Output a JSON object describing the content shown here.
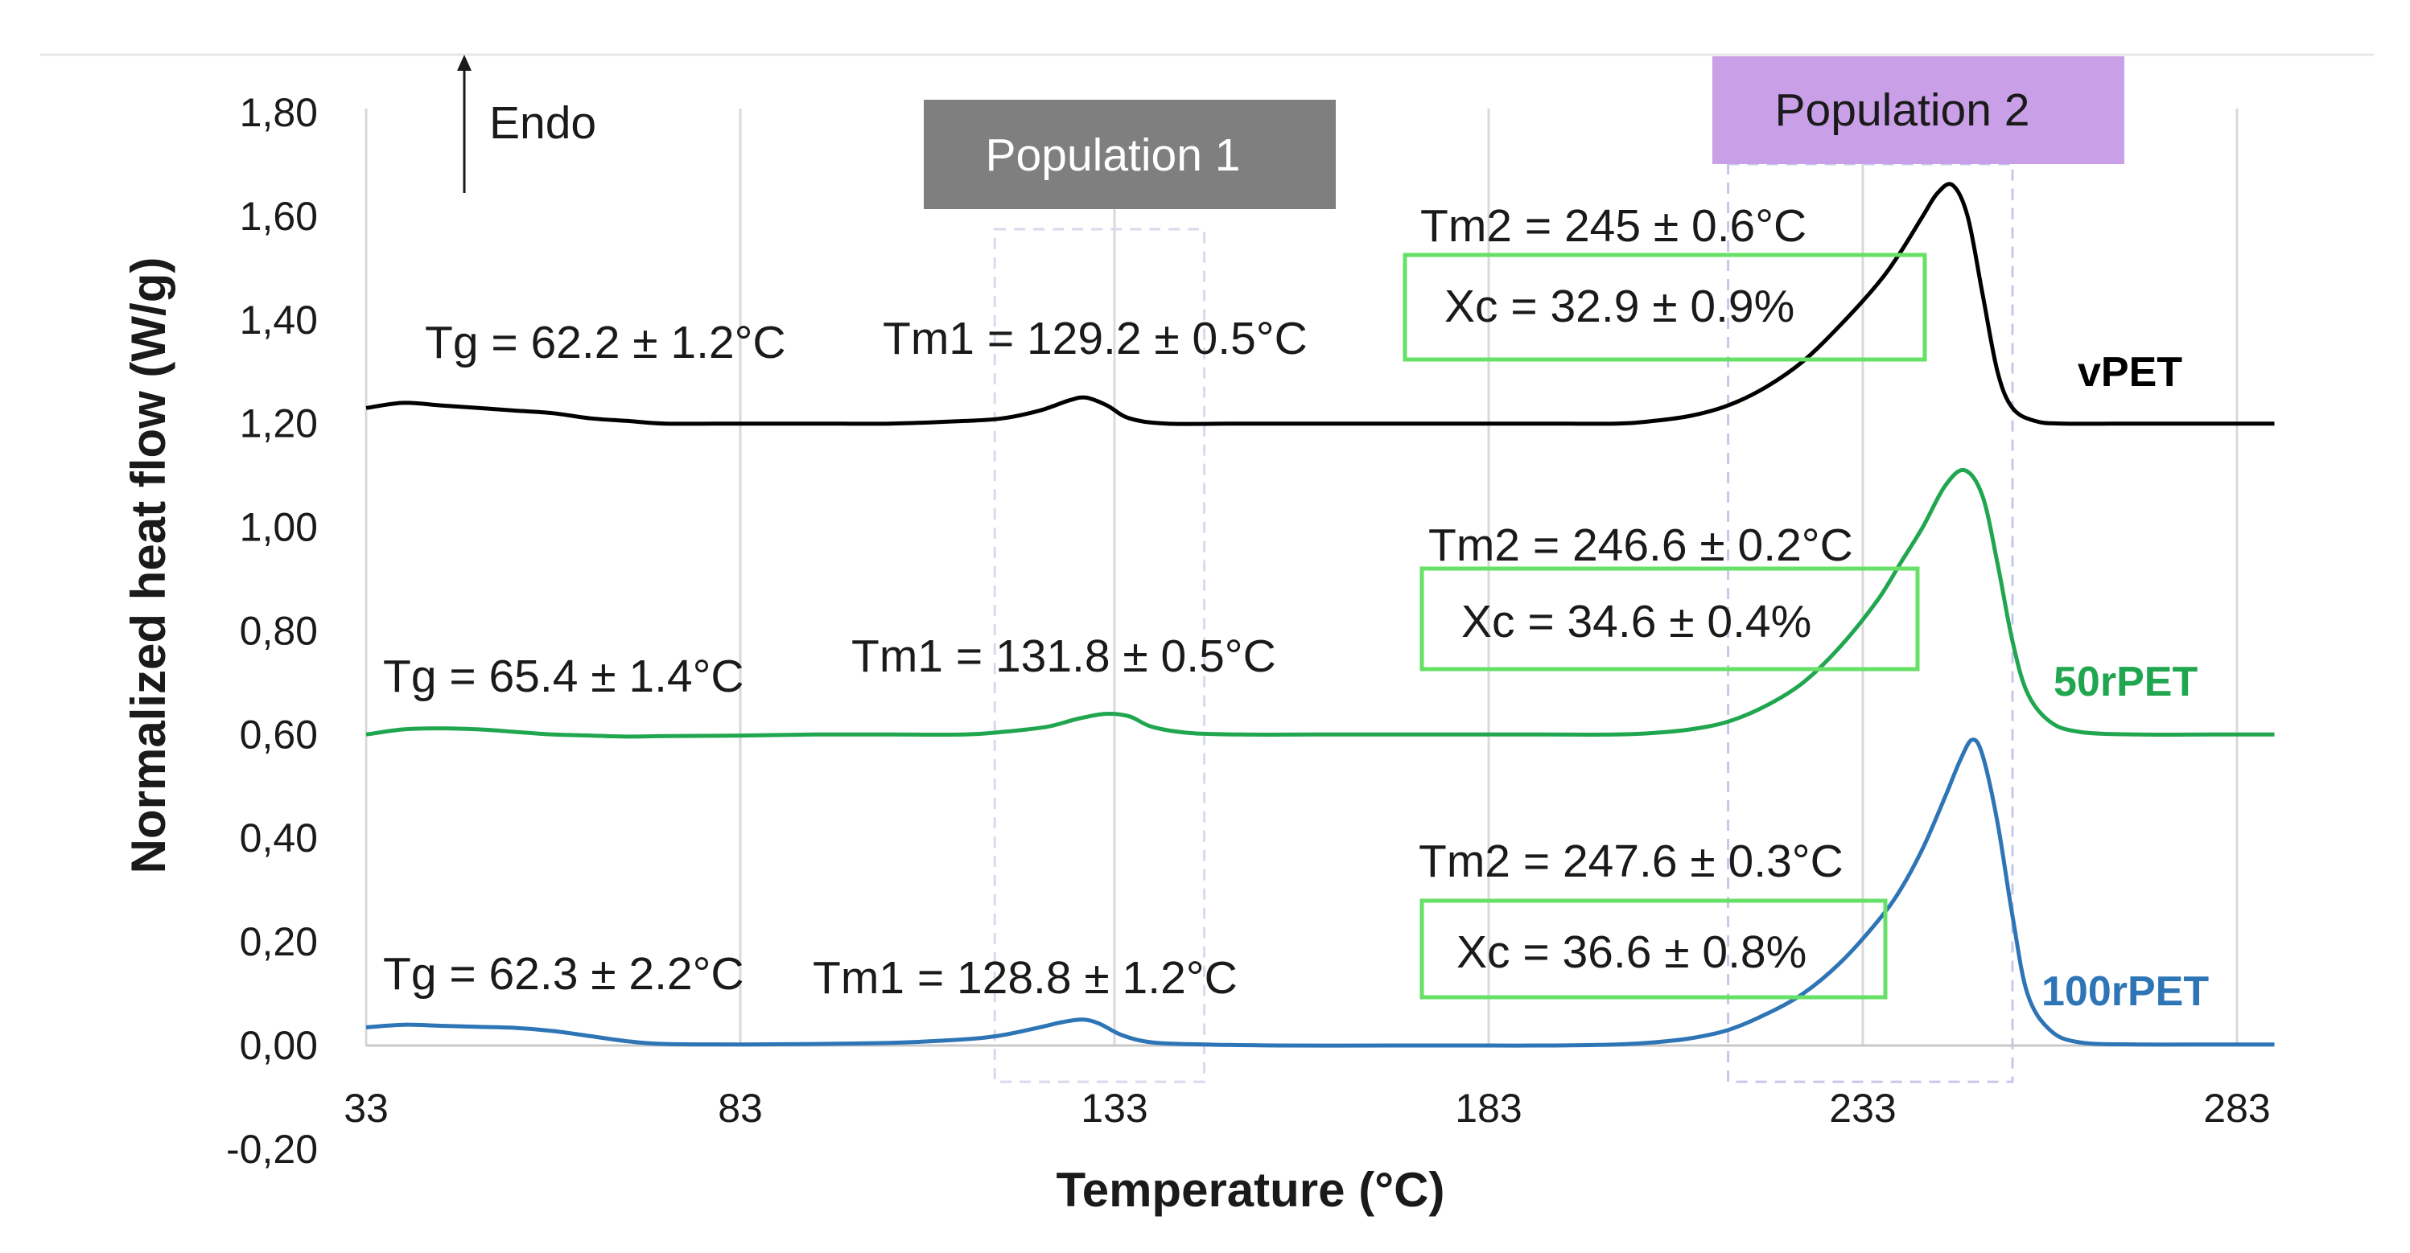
{
  "chart_data": {
    "type": "line",
    "xlabel": "Temperature (°C)",
    "ylabel": "Normalized heat flow (W/g)",
    "xlim": [
      33,
      288
    ],
    "ylim": [
      -0.2,
      1.8
    ],
    "x_ticks": [
      33,
      83,
      133,
      183,
      233,
      283
    ],
    "x_tick_labels": [
      "33",
      "83",
      "133",
      "183",
      "233",
      "283"
    ],
    "y_ticks": [
      -0.2,
      0,
      0.2,
      0.4,
      0.6,
      0.8,
      1.0,
      1.2,
      1.4,
      1.6,
      1.8
    ],
    "y_tick_labels": [
      "-0,20",
      "0,00",
      "0,20",
      "0,40",
      "0,60",
      "0,80",
      "1,00",
      "1,20",
      "1,40",
      "1,60",
      "1,80"
    ],
    "grid": "vertical",
    "endo_label": "Endo",
    "population_1": {
      "label": "Population 1",
      "range": [
        117,
        145
      ],
      "color": "#7f7f7f"
    },
    "population_2": {
      "label": "Population 2",
      "range": [
        215,
        253
      ],
      "color": "#c9a0e8"
    },
    "series": [
      {
        "name": "vPET",
        "color": "#000000",
        "tg_label": "Tg = 62.2 ± 1.2°C",
        "tm1_label": "Tm1 = 129.2 ± 0.5°C",
        "tm2_label": "Tm2 = 245 ± 0.6°C",
        "xc_label": "Xc = 32.9 ± 0.9%",
        "x": [
          33,
          38,
          43,
          48,
          53,
          58,
          63,
          68,
          73,
          83,
          93,
          103,
          113,
          118,
          123,
          127,
          129.2,
          132,
          135,
          140,
          150,
          160,
          170,
          180,
          190,
          200,
          205,
          210,
          215,
          220,
          225,
          230,
          235,
          238,
          241,
          243,
          245,
          247,
          249,
          251,
          253,
          256,
          260,
          270,
          280,
          288
        ],
        "y": [
          1.23,
          1.24,
          1.235,
          1.23,
          1.225,
          1.22,
          1.21,
          1.205,
          1.2,
          1.2,
          1.2,
          1.2,
          1.205,
          1.21,
          1.225,
          1.245,
          1.25,
          1.235,
          1.21,
          1.2,
          1.2,
          1.2,
          1.2,
          1.2,
          1.2,
          1.2,
          1.205,
          1.215,
          1.235,
          1.27,
          1.32,
          1.39,
          1.47,
          1.53,
          1.6,
          1.645,
          1.66,
          1.6,
          1.45,
          1.3,
          1.23,
          1.205,
          1.2,
          1.2,
          1.2,
          1.2
        ]
      },
      {
        "name": "50rPET",
        "color": "#21a650",
        "tg_label": "Tg = 65.4 ± 1.4°C",
        "tm1_label": "Tm1 = 131.8 ± 0.5°C",
        "tm2_label": "Tm2 = 246.6 ± 0.2°C",
        "xc_label": "Xc = 34.6 ± 0.4%",
        "x": [
          33,
          38,
          43,
          48,
          53,
          58,
          63,
          68,
          73,
          83,
          93,
          103,
          113,
          118,
          124,
          128,
          131.8,
          135,
          138,
          143,
          150,
          160,
          170,
          180,
          190,
          200,
          205,
          210,
          215,
          220,
          225,
          230,
          235,
          238,
          241,
          244,
          246.6,
          249,
          251,
          253,
          255,
          258,
          262,
          270,
          280,
          288
        ],
        "y": [
          0.6,
          0.61,
          0.612,
          0.61,
          0.605,
          0.6,
          0.598,
          0.596,
          0.597,
          0.598,
          0.6,
          0.6,
          0.6,
          0.605,
          0.615,
          0.63,
          0.64,
          0.635,
          0.615,
          0.603,
          0.6,
          0.6,
          0.6,
          0.6,
          0.6,
          0.6,
          0.603,
          0.61,
          0.625,
          0.655,
          0.7,
          0.77,
          0.86,
          0.93,
          1.0,
          1.08,
          1.11,
          1.06,
          0.93,
          0.78,
          0.68,
          0.625,
          0.605,
          0.6,
          0.6,
          0.6
        ]
      },
      {
        "name": "100rPET",
        "color": "#2e75b6",
        "tg_label": "Tg = 62.3 ± 2.2°C",
        "tm1_label": "Tm1 = 128.8 ± 1.2°C",
        "tm2_label": "Tm2 = 247.6 ± 0.3°C",
        "xc_label": "Xc = 36.6 ± 0.8%",
        "x": [
          33,
          38,
          43,
          48,
          53,
          58,
          63,
          68,
          73,
          83,
          93,
          103,
          113,
          118,
          123,
          126,
          128.8,
          131,
          134,
          138,
          145,
          155,
          170,
          180,
          190,
          200,
          205,
          210,
          215,
          220,
          225,
          230,
          235,
          238,
          241,
          244,
          246,
          247.6,
          249,
          251,
          253,
          255,
          258,
          262,
          270,
          280,
          288
        ],
        "y": [
          0.035,
          0.04,
          0.038,
          0.036,
          0.034,
          0.028,
          0.018,
          0.008,
          0.003,
          0.002,
          0.003,
          0.005,
          0.012,
          0.02,
          0.035,
          0.045,
          0.05,
          0.042,
          0.02,
          0.006,
          0.002,
          0.0,
          0.0,
          0.0,
          0.0,
          0.002,
          0.006,
          0.014,
          0.03,
          0.06,
          0.1,
          0.16,
          0.24,
          0.3,
          0.38,
          0.48,
          0.55,
          0.59,
          0.56,
          0.43,
          0.25,
          0.1,
          0.03,
          0.006,
          0.002,
          0.002,
          0.002
        ]
      }
    ]
  }
}
